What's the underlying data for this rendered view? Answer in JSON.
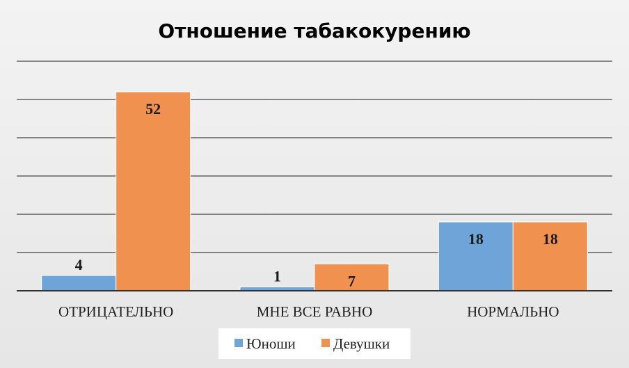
{
  "chart_data": {
    "type": "bar",
    "title": "Отношение табакокурению",
    "categories": [
      "ОТРИЦАТЕЛЬНО",
      "МНЕ ВСЕ РАВНО",
      "НОРМАЛЬНО"
    ],
    "series": [
      {
        "name": "Юноши",
        "values": [
          4,
          1,
          18
        ],
        "color": "#6fa4d8"
      },
      {
        "name": "Девушки",
        "values": [
          52,
          7,
          18
        ],
        "color": "#f0914f"
      }
    ],
    "ylim": [
      0,
      60
    ],
    "grid": true,
    "legend": "bottom",
    "data_labels": true
  }
}
